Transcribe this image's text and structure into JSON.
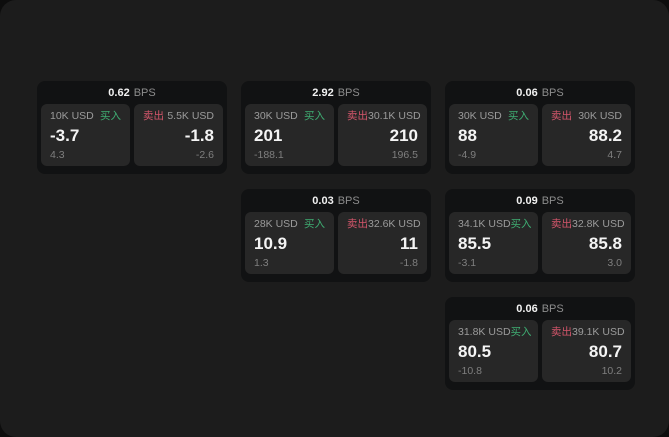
{
  "labels": {
    "bps_unit": "BPS",
    "buy": "买入",
    "sell": "卖出"
  },
  "colors": {
    "page_bg": "#1c1c1c",
    "card_bg": "#111213",
    "panel_bg": "#272727",
    "buy_green": "#3fae73",
    "sell_red": "#d4566b"
  },
  "cards": [
    {
      "bps": "0.62",
      "buy_amount": "10K USD",
      "buy_value": "-3.7",
      "buy_sub": "4.3",
      "sell_amount": "5.5K USD",
      "sell_value": "-1.8",
      "sell_sub": "-2.6"
    },
    {
      "bps": "2.92",
      "buy_amount": "30K USD",
      "buy_value": "201",
      "buy_sub": "-188.1",
      "sell_amount": "30.1K USD",
      "sell_value": "210",
      "sell_sub": "196.5"
    },
    {
      "bps": "0.06",
      "buy_amount": "30K USD",
      "buy_value": "88",
      "buy_sub": "-4.9",
      "sell_amount": "30K USD",
      "sell_value": "88.2",
      "sell_sub": "4.7"
    },
    {
      "bps": "0.03",
      "buy_amount": "28K USD",
      "buy_value": "10.9",
      "buy_sub": "1.3",
      "sell_amount": "32.6K USD",
      "sell_value": "11",
      "sell_sub": "-1.8"
    },
    {
      "bps": "0.09",
      "buy_amount": "34.1K USD",
      "buy_value": "85.5",
      "buy_sub": "-3.1",
      "sell_amount": "32.8K USD",
      "sell_value": "85.8",
      "sell_sub": "3.0"
    },
    {
      "bps": "0.06",
      "buy_amount": "31.8K USD",
      "buy_value": "80.5",
      "buy_sub": "-10.8",
      "sell_amount": "39.1K USD",
      "sell_value": "80.7",
      "sell_sub": "10.2"
    }
  ]
}
